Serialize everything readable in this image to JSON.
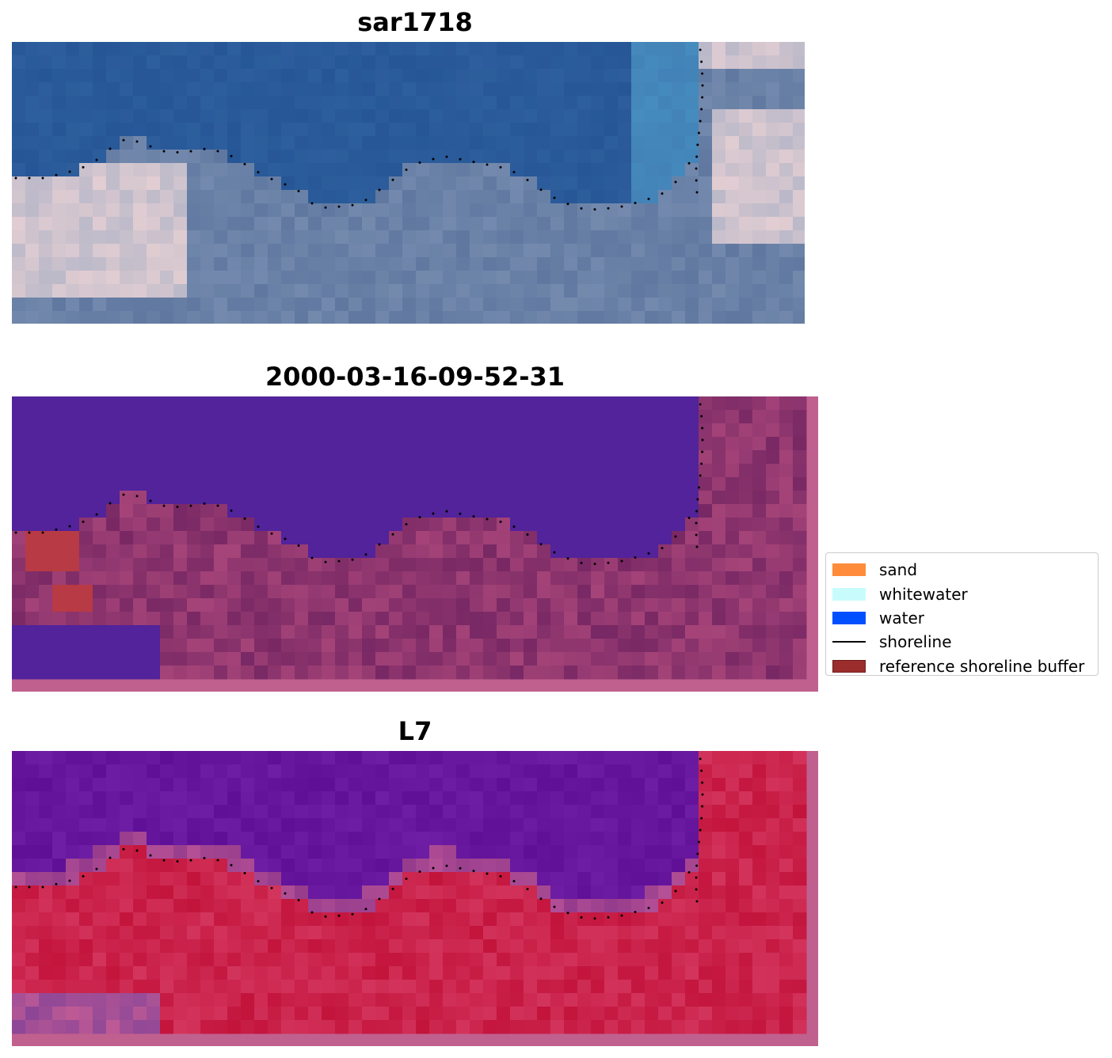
{
  "panels": {
    "top": {
      "title": "sar1718",
      "kind": "rgb"
    },
    "middle": {
      "title": "2000-03-16-09-52-31",
      "kind": "classification"
    },
    "bottom": {
      "title": "L7",
      "kind": "index"
    }
  },
  "legend": {
    "items": [
      {
        "label": "sand",
        "color": "#ff8c3a",
        "type": "patch"
      },
      {
        "label": "whitewater",
        "color": "#c8fcfc",
        "type": "patch"
      },
      {
        "label": "water",
        "color": "#0050ff",
        "type": "patch"
      },
      {
        "label": "shoreline",
        "color": "#000000",
        "type": "line"
      },
      {
        "label": "reference shoreline buffer",
        "color": "#9b2d2d",
        "type": "patch"
      }
    ]
  },
  "colors": {
    "sea_rgb": "#2a5a96",
    "land_rgb": "#6d84a8",
    "cloud": "#f2d8d8",
    "class_water": "#52239a",
    "class_land": "#7a2e6a",
    "class_buffer_red": "#b83a44",
    "ndwi_water": "#6a18a0",
    "ndwi_land": "#c81848",
    "pad": "#c0608e"
  }
}
